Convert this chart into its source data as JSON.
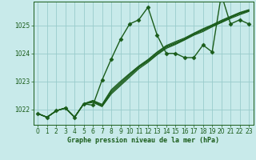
{
  "xlabel": "Graphe pression niveau de la mer (hPa)",
  "bg_color": "#c8eaea",
  "grid_color": "#99cccc",
  "line_color": "#1a5c1a",
  "ylim": [
    1021.45,
    1025.85
  ],
  "xlim": [
    -0.5,
    23.5
  ],
  "yticks": [
    1022,
    1023,
    1024,
    1025
  ],
  "xticks": [
    0,
    1,
    2,
    3,
    4,
    5,
    6,
    7,
    8,
    9,
    10,
    11,
    12,
    13,
    14,
    15,
    16,
    17,
    18,
    19,
    20,
    21,
    22,
    23
  ],
  "series": [
    {
      "y": [
        1021.85,
        1021.72,
        1021.95,
        1022.05,
        1021.72,
        1022.2,
        1022.15,
        1023.05,
        1023.8,
        1024.5,
        1025.05,
        1025.2,
        1025.65,
        1024.65,
        1024.0,
        1024.0,
        1023.85,
        1023.85,
        1024.3,
        1024.05,
        1026.1,
        1025.05,
        1025.2,
        1025.05
      ],
      "lw": 1.0,
      "marker": "D",
      "markersize": 2.5,
      "zorder": 5
    },
    {
      "y": [
        1021.85,
        1021.72,
        1021.95,
        1022.05,
        1021.72,
        1022.2,
        1022.25,
        1022.1,
        1022.55,
        1022.85,
        1023.15,
        1023.45,
        1023.68,
        1023.95,
        1024.18,
        1024.32,
        1024.48,
        1024.65,
        1024.78,
        1024.95,
        1025.1,
        1025.25,
        1025.38,
        1025.5
      ],
      "lw": 0.9,
      "marker": null,
      "markersize": 0,
      "zorder": 3
    },
    {
      "y": [
        1021.85,
        1021.72,
        1021.95,
        1022.05,
        1021.72,
        1022.2,
        1022.28,
        1022.12,
        1022.6,
        1022.9,
        1023.2,
        1023.5,
        1023.72,
        1023.98,
        1024.22,
        1024.35,
        1024.5,
        1024.68,
        1024.82,
        1024.98,
        1025.12,
        1025.28,
        1025.42,
        1025.52
      ],
      "lw": 0.9,
      "marker": null,
      "markersize": 0,
      "zorder": 3
    },
    {
      "y": [
        1021.85,
        1021.72,
        1021.95,
        1022.05,
        1021.72,
        1022.2,
        1022.3,
        1022.15,
        1022.65,
        1022.95,
        1023.25,
        1023.52,
        1023.75,
        1024.02,
        1024.25,
        1024.38,
        1024.52,
        1024.7,
        1024.85,
        1025.0,
        1025.15,
        1025.3,
        1025.44,
        1025.54
      ],
      "lw": 0.9,
      "marker": null,
      "markersize": 0,
      "zorder": 3
    },
    {
      "y": [
        1021.85,
        1021.72,
        1021.95,
        1022.05,
        1021.72,
        1022.2,
        1022.32,
        1022.18,
        1022.7,
        1023.0,
        1023.28,
        1023.55,
        1023.78,
        1024.05,
        1024.28,
        1024.42,
        1024.55,
        1024.72,
        1024.88,
        1025.02,
        1025.18,
        1025.32,
        1025.46,
        1025.56
      ],
      "lw": 0.9,
      "marker": null,
      "markersize": 0,
      "zorder": 3
    }
  ],
  "tick_fontsize": 5.5,
  "xlabel_fontsize": 6.0
}
